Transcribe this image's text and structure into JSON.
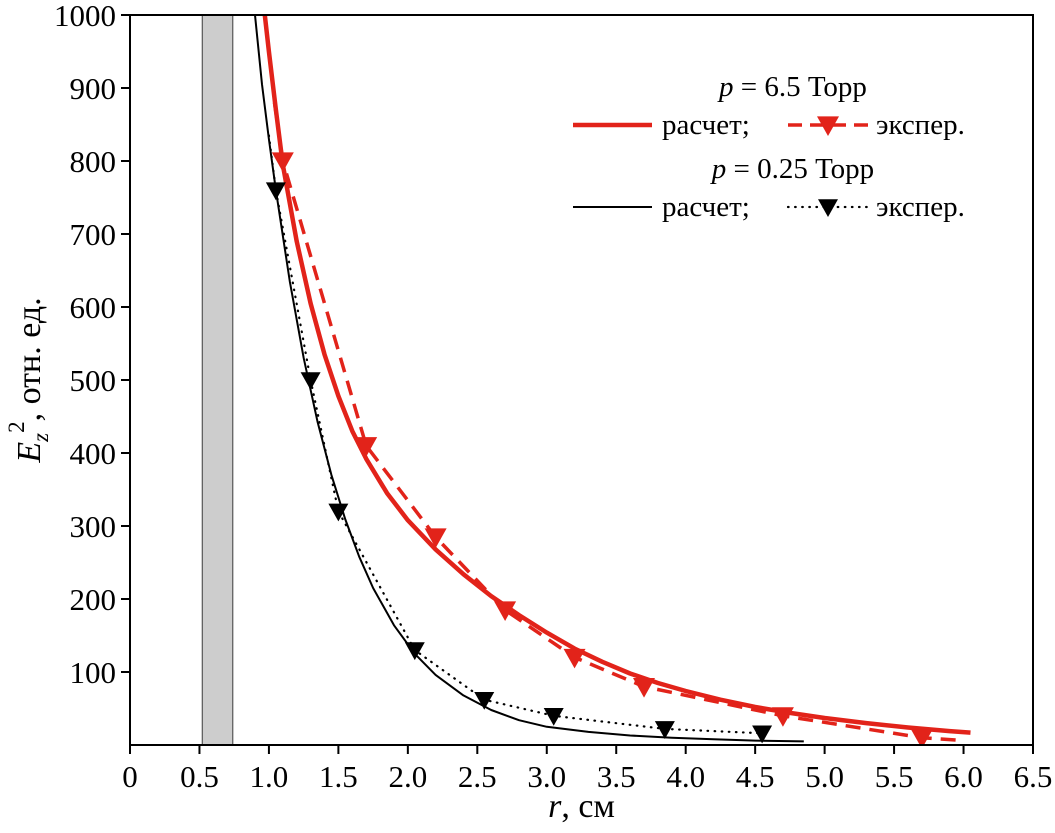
{
  "chart_data": {
    "type": "line",
    "title": "",
    "xlabel": {
      "var": "r",
      "rest": ", см"
    },
    "ylabel": {
      "var": "E",
      "sub": "z",
      "sup": "2",
      "rest": ", отн. ед."
    },
    "xlim": [
      0,
      6.5
    ],
    "ylim": [
      0,
      1000
    ],
    "grid": false,
    "legend_position": "top-right",
    "frame": true,
    "colors": {
      "red": "#e2231a",
      "black": "#000000",
      "gray_bar": "#cdcdcd"
    },
    "x_ticks": [
      {
        "v": 0,
        "label": "0"
      },
      {
        "v": 0.5,
        "label": "0.5"
      },
      {
        "v": 1.0,
        "label": "1.0"
      },
      {
        "v": 1.5,
        "label": "1.5"
      },
      {
        "v": 2.0,
        "label": "2.0"
      },
      {
        "v": 2.5,
        "label": "2.5"
      },
      {
        "v": 3.0,
        "label": "3.0"
      },
      {
        "v": 3.5,
        "label": "3.5"
      },
      {
        "v": 4.0,
        "label": "4.0"
      },
      {
        "v": 4.5,
        "label": "4.5"
      },
      {
        "v": 5.0,
        "label": "5.0"
      },
      {
        "v": 5.5,
        "label": "5.5"
      },
      {
        "v": 6.0,
        "label": "6.0"
      },
      {
        "v": 6.5,
        "label": "6.5"
      }
    ],
    "y_ticks": [
      {
        "v": 100,
        "label": "100"
      },
      {
        "v": 200,
        "label": "200"
      },
      {
        "v": 300,
        "label": "300"
      },
      {
        "v": 400,
        "label": "400"
      },
      {
        "v": 500,
        "label": "500"
      },
      {
        "v": 600,
        "label": "600"
      },
      {
        "v": 700,
        "label": "700"
      },
      {
        "v": 800,
        "label": "800"
      },
      {
        "v": 900,
        "label": "900"
      },
      {
        "v": 1000,
        "label": "1000"
      }
    ],
    "shaded_region": {
      "x0": 0.52,
      "x1": 0.74,
      "color": "#cdcdcd",
      "border": "#3c3c3c"
    },
    "series": [
      {
        "name": "p = 6.5 Торр, расчет",
        "color": "#e2231a",
        "style": "solid",
        "width": 4.5,
        "marker": null,
        "points": [
          [
            0.97,
            1000
          ],
          [
            1.0,
            950
          ],
          [
            1.05,
            870
          ],
          [
            1.1,
            795
          ],
          [
            1.2,
            690
          ],
          [
            1.3,
            605
          ],
          [
            1.4,
            535
          ],
          [
            1.5,
            478
          ],
          [
            1.6,
            430
          ],
          [
            1.7,
            392
          ],
          [
            1.85,
            345
          ],
          [
            2.0,
            308
          ],
          [
            2.2,
            268
          ],
          [
            2.4,
            234
          ],
          [
            2.6,
            204
          ],
          [
            2.8,
            178
          ],
          [
            3.0,
            154
          ],
          [
            3.2,
            132
          ],
          [
            3.4,
            114
          ],
          [
            3.6,
            98
          ],
          [
            3.8,
            85
          ],
          [
            4.0,
            74
          ],
          [
            4.25,
            62
          ],
          [
            4.5,
            52
          ],
          [
            4.75,
            44
          ],
          [
            5.0,
            37
          ],
          [
            5.3,
            30
          ],
          [
            5.6,
            24
          ],
          [
            5.9,
            19
          ],
          [
            6.05,
            17
          ]
        ]
      },
      {
        "name": "p = 6.5 Торр, экспер.",
        "color": "#e2231a",
        "style": "dashed",
        "width": 3.5,
        "marker": "triangle-down",
        "marker_size": 11,
        "points": [
          [
            1.04,
            880
          ],
          [
            1.1,
            800
          ],
          [
            1.7,
            410
          ],
          [
            2.2,
            285
          ],
          [
            2.7,
            185
          ],
          [
            3.2,
            120
          ],
          [
            3.7,
            80
          ],
          [
            4.7,
            40
          ],
          [
            5.7,
            10
          ],
          [
            6.0,
            6
          ]
        ],
        "marker_points": [
          [
            1.1,
            800
          ],
          [
            1.7,
            410
          ],
          [
            2.2,
            285
          ],
          [
            2.7,
            185
          ],
          [
            3.2,
            120
          ],
          [
            3.7,
            80
          ],
          [
            4.7,
            40
          ],
          [
            5.7,
            10
          ]
        ]
      },
      {
        "name": "p = 0.25 Торр, расчет",
        "color": "#000000",
        "style": "solid",
        "width": 2,
        "marker": null,
        "points": [
          [
            0.9,
            1000
          ],
          [
            0.95,
            905
          ],
          [
            1.0,
            830
          ],
          [
            1.05,
            760
          ],
          [
            1.15,
            635
          ],
          [
            1.25,
            530
          ],
          [
            1.35,
            443
          ],
          [
            1.45,
            370
          ],
          [
            1.55,
            309
          ],
          [
            1.65,
            258
          ],
          [
            1.75,
            215
          ],
          [
            1.9,
            164
          ],
          [
            2.05,
            125
          ],
          [
            2.2,
            96
          ],
          [
            2.4,
            68
          ],
          [
            2.6,
            48
          ],
          [
            2.8,
            34
          ],
          [
            3.0,
            25
          ],
          [
            3.3,
            18
          ],
          [
            3.6,
            13
          ],
          [
            3.9,
            10
          ],
          [
            4.2,
            8
          ],
          [
            4.5,
            6
          ],
          [
            4.85,
            5
          ]
        ]
      },
      {
        "name": "p = 0.25 Торр, экспер.",
        "color": "#000000",
        "style": "dotted",
        "width": 2.2,
        "marker": "triangle-down",
        "marker_size": 10,
        "points": [
          [
            1.0,
            835
          ],
          [
            1.05,
            760
          ],
          [
            1.3,
            500
          ],
          [
            1.5,
            320
          ],
          [
            2.05,
            130
          ],
          [
            2.55,
            62
          ],
          [
            3.05,
            40
          ],
          [
            3.85,
            22
          ],
          [
            4.55,
            16
          ]
        ],
        "marker_points": [
          [
            1.05,
            760
          ],
          [
            1.3,
            500
          ],
          [
            1.5,
            320
          ],
          [
            2.05,
            130
          ],
          [
            2.55,
            62
          ],
          [
            3.05,
            40
          ],
          [
            3.85,
            22
          ],
          [
            4.55,
            16
          ]
        ]
      }
    ],
    "legend": {
      "groups": [
        {
          "var": "p",
          "title": " = 6.5 Торр",
          "calc": "расчет;",
          "exp": "экспер.",
          "series_calc": 0,
          "series_exp": 1
        },
        {
          "var": "p",
          "title": " = 0.25 Торр",
          "calc": "расчет;",
          "exp": "экспер.",
          "series_calc": 2,
          "series_exp": 3
        }
      ]
    }
  }
}
